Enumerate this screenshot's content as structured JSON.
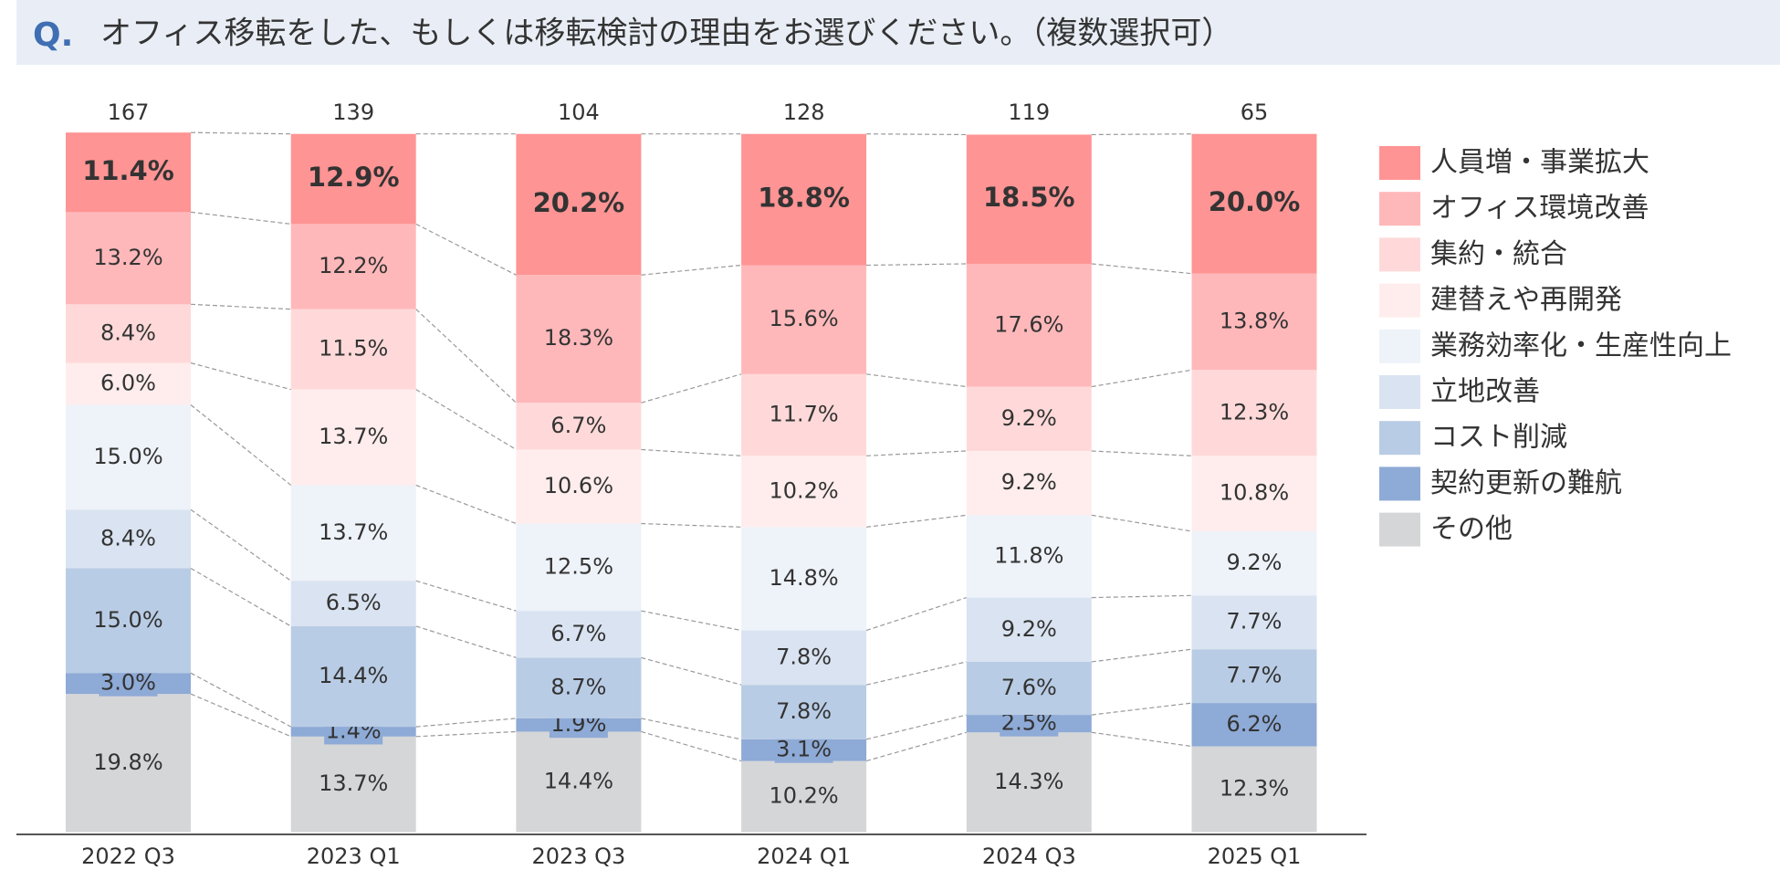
{
  "chart_data": {
    "type": "stacked_bar_100",
    "title_prefix": "Q.",
    "title": "オフィス移転をした、もしくは移転検討の理由をお選びください。（複数選択可）",
    "categories": [
      "2022 Q3",
      "2023 Q1",
      "2023 Q3",
      "2024 Q1",
      "2024 Q3",
      "2025 Q1"
    ],
    "totals": [
      167,
      139,
      104,
      128,
      119,
      65
    ],
    "ylim": [
      0,
      100
    ],
    "series": [
      {
        "name": "人員増・事業拡大",
        "color": "#ff9494",
        "values": [
          11.4,
          12.9,
          20.2,
          18.8,
          18.5,
          20.0
        ],
        "value_labels": [
          "11.4%",
          "12.9%",
          "20.2%",
          "18.8%",
          "18.5%",
          "20.0%"
        ]
      },
      {
        "name": "オフィス環境改善",
        "color": "#ffb8ba",
        "values": [
          13.2,
          12.2,
          18.3,
          15.6,
          17.6,
          13.8
        ],
        "value_labels": [
          "13.2%",
          "12.2%",
          "18.3%",
          "15.6%",
          "17.6%",
          "13.8%"
        ]
      },
      {
        "name": "集約・統合",
        "color": "#ffd9d9",
        "values": [
          8.4,
          11.5,
          6.7,
          11.7,
          9.2,
          12.3
        ],
        "value_labels": [
          "8.4%",
          "11.5%",
          "6.7%",
          "11.7%",
          "9.2%",
          "12.3%"
        ]
      },
      {
        "name": "建替えや再開発",
        "color": "#ffeded",
        "values": [
          6.0,
          13.7,
          10.6,
          10.2,
          9.2,
          10.8
        ],
        "value_labels": [
          "6.0%",
          "13.7%",
          "10.6%",
          "10.2%",
          "9.2%",
          "10.8%"
        ]
      },
      {
        "name": "業務効率化・生産性向上",
        "color": "#eef2f9",
        "values": [
          15.0,
          13.7,
          12.5,
          14.8,
          11.8,
          9.2
        ],
        "value_labels": [
          "15.0%",
          "13.7%",
          "12.5%",
          "14.8%",
          "11.8%",
          "9.2%"
        ]
      },
      {
        "name": "立地改善",
        "color": "#dae3f1",
        "values": [
          8.4,
          6.5,
          6.7,
          7.8,
          9.2,
          7.7
        ],
        "value_labels": [
          "8.4%",
          "6.5%",
          "6.7%",
          "7.8%",
          "9.2%",
          "7.7%"
        ]
      },
      {
        "name": "コスト削減",
        "color": "#b9cce5",
        "values": [
          15.0,
          14.4,
          8.7,
          7.8,
          7.6,
          7.7
        ],
        "value_labels": [
          "15.0%",
          "14.4%",
          "8.7%",
          "7.8%",
          "7.6%",
          "7.7%"
        ]
      },
      {
        "name": "契約更新の難航",
        "color": "#8eaad6",
        "values": [
          3.0,
          1.4,
          1.9,
          3.1,
          2.5,
          6.2
        ],
        "value_labels": [
          "3.0%",
          "1.4%",
          "1.9%",
          "3.1%",
          "2.5%",
          "6.2%"
        ]
      },
      {
        "name": "その他",
        "color": "#d5d6d8",
        "values": [
          19.8,
          13.7,
          14.4,
          10.2,
          14.3,
          12.3
        ],
        "value_labels": [
          "19.8%",
          "13.7%",
          "14.4%",
          "10.2%",
          "14.3%",
          "12.3%"
        ]
      }
    ]
  }
}
